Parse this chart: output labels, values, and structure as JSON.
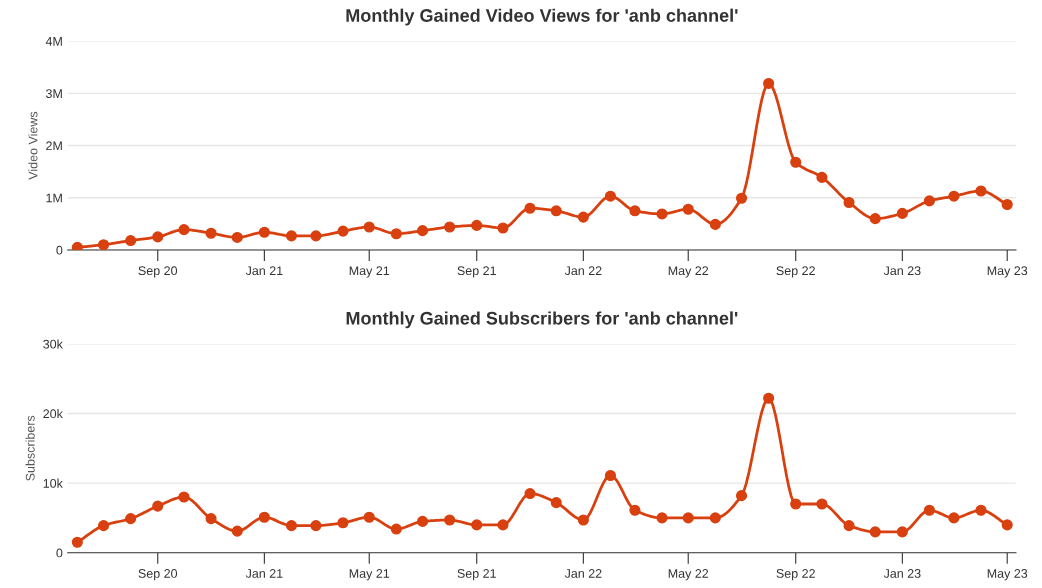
{
  "chart_data": [
    {
      "type": "line",
      "title": "Monthly Gained Video Views for 'anb channel'",
      "ylabel": "Video Views",
      "x": [
        "2020-06-01",
        "2020-07-01",
        "2020-08-01",
        "2020-09-01",
        "2020-10-01",
        "2020-11-01",
        "2020-12-01",
        "2021-01-01",
        "2021-02-01",
        "2021-03-01",
        "2021-04-01",
        "2021-05-01",
        "2021-06-01",
        "2021-07-01",
        "2021-08-01",
        "2021-09-01",
        "2021-10-01",
        "2021-11-01",
        "2021-12-01",
        "2022-01-01",
        "2022-02-01",
        "2022-03-01",
        "2022-04-01",
        "2022-05-01",
        "2022-06-01",
        "2022-07-01",
        "2022-08-01",
        "2022-09-01",
        "2022-10-01",
        "2022-11-01",
        "2022-12-01",
        "2023-01-01",
        "2023-02-01",
        "2023-03-01",
        "2023-04-01",
        "2023-05-01"
      ],
      "series": [
        {
          "color": "#d9400f",
          "values": [
            50000,
            100000,
            180000,
            250000,
            390000,
            320000,
            240000,
            340000,
            270000,
            270000,
            360000,
            440000,
            310000,
            370000,
            440000,
            470000,
            420000,
            800000,
            750000,
            630000,
            1030000,
            750000,
            690000,
            780000,
            490000,
            990000,
            3190000,
            1680000,
            1390000,
            910000,
            600000,
            700000,
            940000,
            1030000,
            1130000,
            870000
          ]
        }
      ],
      "xlim": [
        "2020-05-21",
        "2023-05-11"
      ],
      "xticks": [
        {
          "value": "2020-09-01",
          "label": "Sep 20"
        },
        {
          "value": "2021-01-01",
          "label": "Jan 21"
        },
        {
          "value": "2021-05-01",
          "label": "May 21"
        },
        {
          "value": "2021-09-01",
          "label": "Sep 21"
        },
        {
          "value": "2022-01-01",
          "label": "Jan 22"
        },
        {
          "value": "2022-05-01",
          "label": "May 22"
        },
        {
          "value": "2022-09-01",
          "label": "Sep 22"
        },
        {
          "value": "2023-01-01",
          "label": "Jan 23"
        },
        {
          "value": "2023-05-01",
          "label": "May 23"
        }
      ],
      "ylim": [
        0,
        4000000
      ],
      "yticks": [
        0,
        {
          "value": 1000000,
          "label": "1M"
        },
        {
          "value": 2000000,
          "label": "2M"
        },
        {
          "value": 3000000,
          "label": "3M"
        },
        {
          "value": 4000000,
          "label": "4M"
        }
      ],
      "grid": "y",
      "marker": "circle",
      "line_style": "solid"
    },
    {
      "type": "line",
      "title": "Monthly Gained Subscribers for 'anb channel'",
      "ylabel": "Subscribers",
      "x": [
        "2020-06-01",
        "2020-07-01",
        "2020-08-01",
        "2020-09-01",
        "2020-10-01",
        "2020-11-01",
        "2020-12-01",
        "2021-01-01",
        "2021-02-01",
        "2021-03-01",
        "2021-04-01",
        "2021-05-01",
        "2021-06-01",
        "2021-07-01",
        "2021-08-01",
        "2021-09-01",
        "2021-10-01",
        "2021-11-01",
        "2021-12-01",
        "2022-01-01",
        "2022-02-01",
        "2022-03-01",
        "2022-04-01",
        "2022-05-01",
        "2022-06-01",
        "2022-07-01",
        "2022-08-01",
        "2022-09-01",
        "2022-10-01",
        "2022-11-01",
        "2022-12-01",
        "2023-01-01",
        "2023-02-01",
        "2023-03-01",
        "2023-04-01",
        "2023-05-01"
      ],
      "series": [
        {
          "color": "#d9400f",
          "values": [
            1500,
            3900,
            4900,
            6700,
            8000,
            4900,
            3100,
            5100,
            3900,
            3900,
            4300,
            5100,
            3400,
            4500,
            4700,
            4000,
            4000,
            8500,
            7200,
            4700,
            11100,
            6100,
            5000,
            5000,
            5000,
            8200,
            22200,
            7000,
            7000,
            3900,
            3000,
            3000,
            6100,
            5000,
            6100,
            4000
          ]
        }
      ],
      "xlim": [
        "2020-05-21",
        "2023-05-11"
      ],
      "xticks": [
        {
          "value": "2020-09-01",
          "label": "Sep 20"
        },
        {
          "value": "2021-01-01",
          "label": "Jan 21"
        },
        {
          "value": "2021-05-01",
          "label": "May 21"
        },
        {
          "value": "2021-09-01",
          "label": "Sep 21"
        },
        {
          "value": "2022-01-01",
          "label": "Jan 22"
        },
        {
          "value": "2022-05-01",
          "label": "May 22"
        },
        {
          "value": "2022-09-01",
          "label": "Sep 22"
        },
        {
          "value": "2023-01-01",
          "label": "Jan 23"
        },
        {
          "value": "2023-05-01",
          "label": "May 23"
        }
      ],
      "ylim": [
        0,
        30000
      ],
      "yticks": [
        0,
        {
          "value": 10000,
          "label": "10k"
        },
        {
          "value": 20000,
          "label": "20k"
        },
        {
          "value": 30000,
          "label": "30k"
        }
      ],
      "grid": "y",
      "marker": "circle",
      "line_style": "solid"
    }
  ]
}
